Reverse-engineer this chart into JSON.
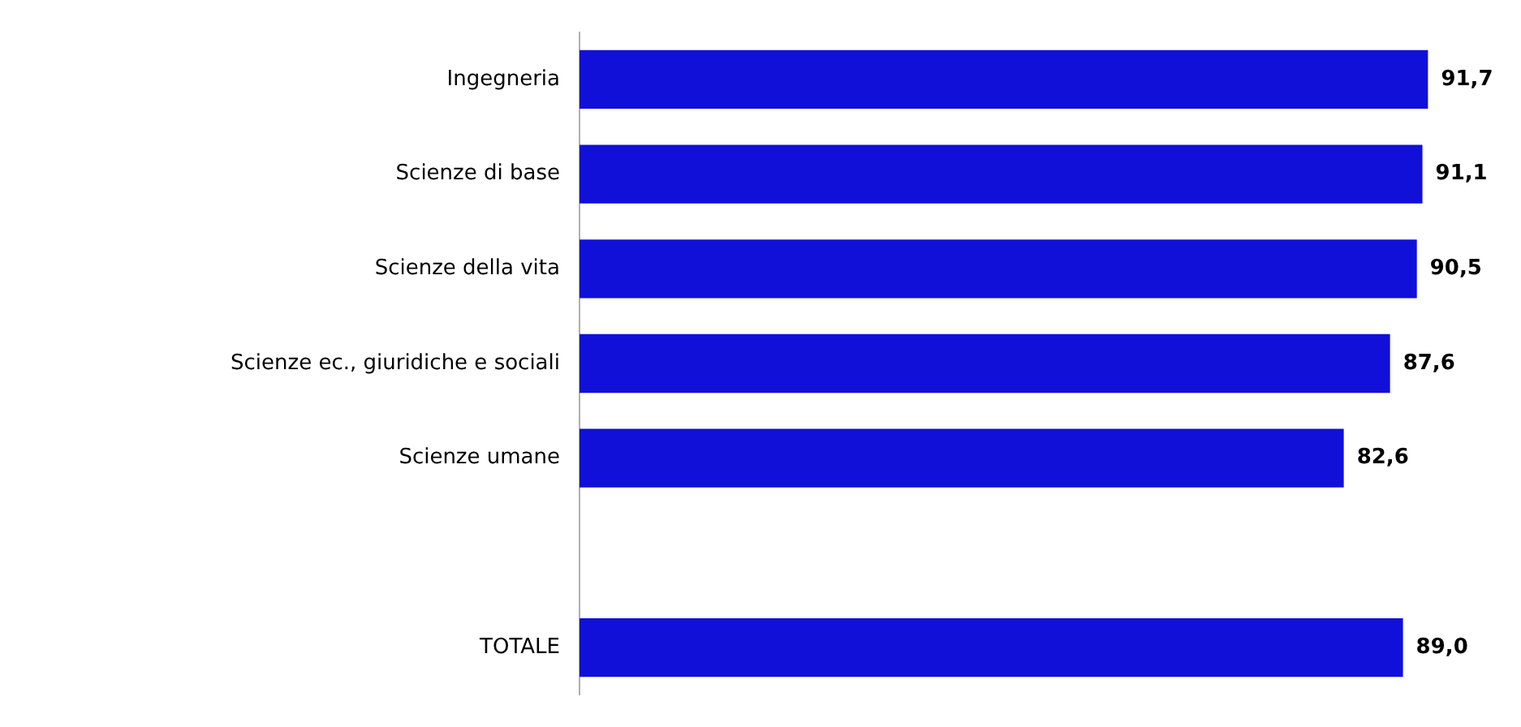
{
  "chart_data": {
    "type": "bar",
    "orientation": "horizontal",
    "categories": [
      "Ingegneria",
      "Scienze di base",
      "Scienze della vita",
      "Scienze ec., giuridiche e sociali",
      "Scienze umane",
      null,
      "TOTALE"
    ],
    "values": [
      91.7,
      91.1,
      90.5,
      87.6,
      82.6,
      null,
      89.0
    ],
    "value_labels": [
      "91,7",
      "91,1",
      "90,5",
      "87,6",
      "82,6",
      null,
      "89,0"
    ],
    "color": "#1010d8",
    "tick_labels": "y",
    "grid": false,
    "legend": false
  }
}
